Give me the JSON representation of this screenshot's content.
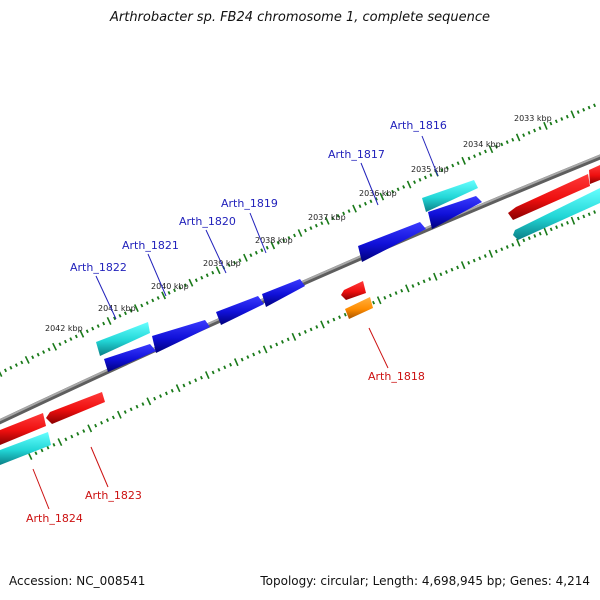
{
  "title": "Arthrobacter sp. FB24 chromosome 1, complete sequence",
  "footer": {
    "accession": "Accession: NC_008541",
    "topology": "Topology: circular; Length: 4,698,945 bp; Genes: 4,214"
  },
  "kbp_ticks": [
    "2033 kbp",
    "2034 kbp",
    "2035 kbp",
    "2036 kbp",
    "2037 kbp",
    "2038 kbp",
    "2039 kbp",
    "2040 kbp",
    "2041 kbp",
    "2042 kbp"
  ],
  "gene_labels": [
    "Arth_1816",
    "Arth_1817",
    "Arth_1818",
    "Arth_1819",
    "Arth_1820",
    "Arth_1821",
    "Arth_1822",
    "Arth_1823",
    "Arth_1824"
  ],
  "colors": {
    "forward_cds": "#1414cc",
    "forward_rna": "#33c6c6",
    "reverse_cds": "#e11414",
    "reverse_rna": "#1fc0c8",
    "reverse_other": "#ff8c00",
    "forward_label": "#2222bb",
    "reverse_label": "#cc1111",
    "backbone": "#777777",
    "ticks": "#1a7a1a"
  }
}
